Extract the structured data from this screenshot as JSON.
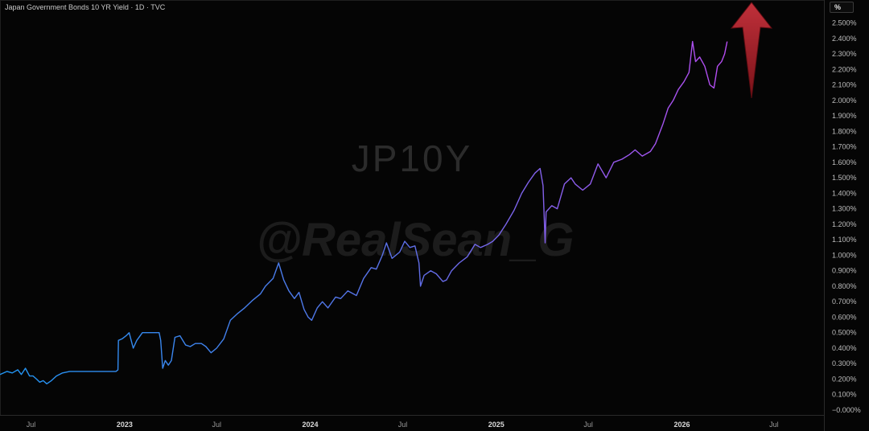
{
  "header": {
    "title": "Japan Government Bonds 10 YR Yield · 1D · TVC",
    "unit_label": "%"
  },
  "watermark": {
    "symbol": "JP10Y",
    "handle": "@RealSean_G"
  },
  "colors": {
    "background": "#050505",
    "line_start": "#2196f3",
    "line_end": "#b54cf0",
    "arrow": "#a3232b",
    "axis_text": "#bdbdbd"
  },
  "annotation": {
    "icon": "arrow-up-icon"
  },
  "chart_data": {
    "type": "line",
    "ylim": [
      0.0,
      2.5
    ],
    "y_ticks": [
      "2.500%",
      "2.400%",
      "2.300%",
      "2.200%",
      "2.100%",
      "2.000%",
      "1.900%",
      "1.800%",
      "1.700%",
      "1.600%",
      "1.500%",
      "1.400%",
      "1.300%",
      "1.200%",
      "1.100%",
      "1.000%",
      "0.900%",
      "0.800%",
      "0.700%",
      "0.600%",
      "0.500%",
      "0.400%",
      "0.300%",
      "0.200%",
      "0.100%",
      "−0.000%"
    ],
    "x_ticks": [
      {
        "label": "Jul",
        "date": "2022-07-01"
      },
      {
        "label": "2023",
        "date": "2023-01-01"
      },
      {
        "label": "Jul",
        "date": "2023-07-01"
      },
      {
        "label": "2024",
        "date": "2024-01-01"
      },
      {
        "label": "Jul",
        "date": "2024-07-01"
      },
      {
        "label": "2025",
        "date": "2025-01-01"
      },
      {
        "label": "Jul",
        "date": "2025-07-01"
      },
      {
        "label": "2026",
        "date": "2026-01-01"
      },
      {
        "label": "Jul",
        "date": "2026-07-01"
      }
    ],
    "series": [
      {
        "points": [
          [
            "2022-05-01",
            0.23
          ],
          [
            "2022-05-15",
            0.25
          ],
          [
            "2022-05-25",
            0.24
          ],
          [
            "2022-06-05",
            0.26
          ],
          [
            "2022-06-12",
            0.23
          ],
          [
            "2022-06-20",
            0.27
          ],
          [
            "2022-06-28",
            0.22
          ],
          [
            "2022-07-05",
            0.22
          ],
          [
            "2022-07-12",
            0.2
          ],
          [
            "2022-07-18",
            0.18
          ],
          [
            "2022-07-25",
            0.19
          ],
          [
            "2022-08-01",
            0.17
          ],
          [
            "2022-08-10",
            0.19
          ],
          [
            "2022-08-20",
            0.22
          ],
          [
            "2022-09-01",
            0.24
          ],
          [
            "2022-09-15",
            0.25
          ],
          [
            "2022-10-01",
            0.25
          ],
          [
            "2022-10-15",
            0.25
          ],
          [
            "2022-11-01",
            0.25
          ],
          [
            "2022-11-15",
            0.25
          ],
          [
            "2022-12-01",
            0.25
          ],
          [
            "2022-12-15",
            0.25
          ],
          [
            "2022-12-19",
            0.26
          ],
          [
            "2022-12-20",
            0.45
          ],
          [
            "2022-12-27",
            0.46
          ],
          [
            "2023-01-04",
            0.48
          ],
          [
            "2023-01-10",
            0.5
          ],
          [
            "2023-01-18",
            0.4
          ],
          [
            "2023-01-25",
            0.45
          ],
          [
            "2023-02-05",
            0.5
          ],
          [
            "2023-02-20",
            0.5
          ],
          [
            "2023-03-01",
            0.5
          ],
          [
            "2023-03-10",
            0.5
          ],
          [
            "2023-03-13",
            0.45
          ],
          [
            "2023-03-17",
            0.27
          ],
          [
            "2023-03-22",
            0.32
          ],
          [
            "2023-03-28",
            0.29
          ],
          [
            "2023-04-03",
            0.32
          ],
          [
            "2023-04-10",
            0.47
          ],
          [
            "2023-04-20",
            0.48
          ],
          [
            "2023-05-01",
            0.42
          ],
          [
            "2023-05-10",
            0.41
          ],
          [
            "2023-05-20",
            0.43
          ],
          [
            "2023-06-01",
            0.43
          ],
          [
            "2023-06-10",
            0.41
          ],
          [
            "2023-06-20",
            0.37
          ],
          [
            "2023-07-01",
            0.4
          ],
          [
            "2023-07-15",
            0.46
          ],
          [
            "2023-07-28",
            0.58
          ],
          [
            "2023-08-10",
            0.62
          ],
          [
            "2023-08-25",
            0.66
          ],
          [
            "2023-09-10",
            0.71
          ],
          [
            "2023-09-25",
            0.75
          ],
          [
            "2023-10-05",
            0.8
          ],
          [
            "2023-10-20",
            0.85
          ],
          [
            "2023-10-31",
            0.95
          ],
          [
            "2023-11-10",
            0.84
          ],
          [
            "2023-11-20",
            0.77
          ],
          [
            "2023-12-01",
            0.72
          ],
          [
            "2023-12-10",
            0.76
          ],
          [
            "2023-12-20",
            0.65
          ],
          [
            "2023-12-28",
            0.6
          ],
          [
            "2024-01-04",
            0.58
          ],
          [
            "2024-01-15",
            0.66
          ],
          [
            "2024-01-25",
            0.7
          ],
          [
            "2024-02-05",
            0.66
          ],
          [
            "2024-02-20",
            0.73
          ],
          [
            "2024-03-01",
            0.72
          ],
          [
            "2024-03-15",
            0.77
          ],
          [
            "2024-04-01",
            0.74
          ],
          [
            "2024-04-15",
            0.85
          ],
          [
            "2024-04-30",
            0.92
          ],
          [
            "2024-05-10",
            0.91
          ],
          [
            "2024-05-22",
            1.0
          ],
          [
            "2024-05-30",
            1.08
          ],
          [
            "2024-06-10",
            0.98
          ],
          [
            "2024-06-25",
            1.02
          ],
          [
            "2024-07-05",
            1.09
          ],
          [
            "2024-07-15",
            1.05
          ],
          [
            "2024-07-25",
            1.06
          ],
          [
            "2024-08-02",
            0.95
          ],
          [
            "2024-08-05",
            0.8
          ],
          [
            "2024-08-12",
            0.87
          ],
          [
            "2024-08-25",
            0.9
          ],
          [
            "2024-09-05",
            0.88
          ],
          [
            "2024-09-18",
            0.83
          ],
          [
            "2024-09-25",
            0.84
          ],
          [
            "2024-10-05",
            0.9
          ],
          [
            "2024-10-20",
            0.95
          ],
          [
            "2024-11-05",
            0.99
          ],
          [
            "2024-11-20",
            1.07
          ],
          [
            "2024-12-01",
            1.05
          ],
          [
            "2024-12-15",
            1.07
          ],
          [
            "2024-12-25",
            1.09
          ],
          [
            "2025-01-06",
            1.13
          ],
          [
            "2025-01-20",
            1.2
          ],
          [
            "2025-02-05",
            1.29
          ],
          [
            "2025-02-20",
            1.4
          ],
          [
            "2025-03-05",
            1.47
          ],
          [
            "2025-03-18",
            1.53
          ],
          [
            "2025-03-28",
            1.56
          ],
          [
            "2025-04-03",
            1.45
          ],
          [
            "2025-04-07",
            1.08
          ],
          [
            "2025-04-09",
            1.28
          ],
          [
            "2025-04-20",
            1.32
          ],
          [
            "2025-05-01",
            1.3
          ],
          [
            "2025-05-15",
            1.46
          ],
          [
            "2025-05-28",
            1.5
          ],
          [
            "2025-06-05",
            1.46
          ],
          [
            "2025-06-20",
            1.42
          ],
          [
            "2025-07-05",
            1.46
          ],
          [
            "2025-07-20",
            1.59
          ],
          [
            "2025-08-05",
            1.5
          ],
          [
            "2025-08-20",
            1.6
          ],
          [
            "2025-09-05",
            1.62
          ],
          [
            "2025-09-20",
            1.65
          ],
          [
            "2025-10-01",
            1.68
          ],
          [
            "2025-10-15",
            1.64
          ],
          [
            "2025-10-31",
            1.67
          ],
          [
            "2025-11-10",
            1.72
          ],
          [
            "2025-11-25",
            1.85
          ],
          [
            "2025-12-05",
            1.95
          ],
          [
            "2025-12-15",
            2.0
          ],
          [
            "2025-12-25",
            2.07
          ],
          [
            "2026-01-05",
            2.12
          ],
          [
            "2026-01-15",
            2.18
          ],
          [
            "2026-01-22",
            2.38
          ],
          [
            "2026-01-28",
            2.25
          ],
          [
            "2026-02-05",
            2.28
          ],
          [
            "2026-02-15",
            2.22
          ],
          [
            "2026-02-25",
            2.1
          ],
          [
            "2026-03-05",
            2.08
          ],
          [
            "2026-03-12",
            2.22
          ],
          [
            "2026-03-20",
            2.25
          ],
          [
            "2026-03-26",
            2.3
          ],
          [
            "2026-03-31",
            2.38
          ]
        ]
      }
    ],
    "grid": false,
    "y_axis_position": "right"
  }
}
